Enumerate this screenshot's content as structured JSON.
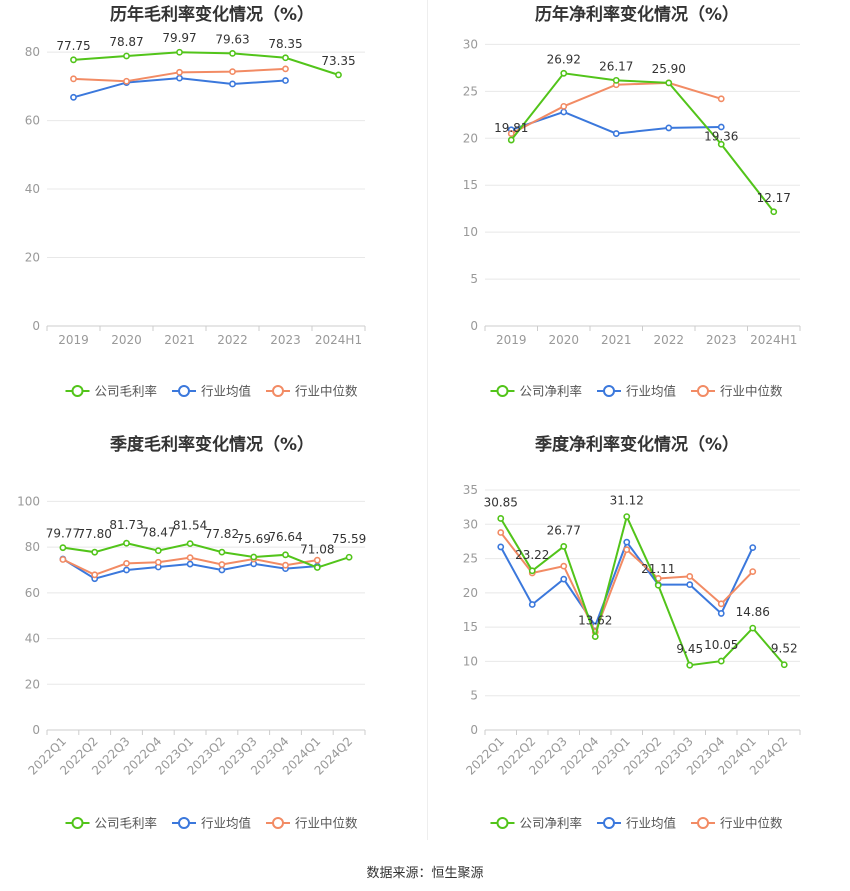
{
  "source_label": "数据来源：恒生聚源",
  "colors": {
    "company": "#52c41a",
    "avg": "#3b78dc",
    "median": "#f28b64",
    "grid": "#e8e8e8",
    "axis": "#999999",
    "label": "#333333"
  },
  "chart_data": [
    {
      "type": "line",
      "title": "历年毛利率变化情况（%）",
      "categories": [
        "2019",
        "2020",
        "2021",
        "2022",
        "2023",
        "2024H1"
      ],
      "ylim": [
        0,
        85
      ],
      "yticks": [
        0,
        20,
        40,
        60,
        80
      ],
      "legend": "bottom-center",
      "series": [
        {
          "name": "公司毛利率",
          "key": "company",
          "values": [
            77.75,
            78.87,
            79.97,
            79.63,
            78.35,
            73.35
          ],
          "labels": [
            "77.75",
            "78.87",
            "79.97",
            "79.63",
            "78.35",
            "73.35"
          ]
        },
        {
          "name": "行业均值",
          "key": "avg",
          "values": [
            66.8,
            71.1,
            72.4,
            70.7,
            71.7,
            null
          ]
        },
        {
          "name": "行业中位数",
          "key": "median",
          "values": [
            72.2,
            71.5,
            74.1,
            74.3,
            75.1,
            null
          ]
        }
      ]
    },
    {
      "type": "line",
      "title": "历年净利率变化情况（%）",
      "categories": [
        "2019",
        "2020",
        "2021",
        "2022",
        "2023",
        "2024H1"
      ],
      "ylim": [
        0,
        31
      ],
      "yticks": [
        0,
        5,
        10,
        15,
        20,
        25,
        30
      ],
      "legend": "bottom-center",
      "series": [
        {
          "name": "公司净利率",
          "key": "company",
          "values": [
            19.81,
            26.92,
            26.17,
            25.9,
            19.36,
            12.17
          ],
          "labels": [
            "19.81",
            "26.92",
            "26.17",
            "25.90",
            "19.36",
            "12.17"
          ]
        },
        {
          "name": "行业均值",
          "key": "avg",
          "values": [
            20.9,
            22.8,
            20.5,
            21.1,
            21.2,
            null
          ]
        },
        {
          "name": "行业中位数",
          "key": "median",
          "values": [
            20.5,
            23.4,
            25.7,
            25.9,
            24.2,
            null
          ]
        }
      ]
    },
    {
      "type": "line",
      "title": "季度毛利率变化情况（%）",
      "categories": [
        "2022Q1",
        "2022Q2",
        "2022Q3",
        "2022Q4",
        "2023Q1",
        "2023Q2",
        "2023Q3",
        "2023Q4",
        "2024Q1",
        "2024Q2"
      ],
      "ylim": [
        0,
        105
      ],
      "yticks": [
        0,
        20,
        40,
        60,
        80,
        100
      ],
      "legend": "bottom-center",
      "series": [
        {
          "name": "公司毛利率",
          "key": "company",
          "values": [
            79.77,
            77.8,
            81.73,
            78.47,
            81.54,
            77.82,
            75.69,
            76.64,
            71.08,
            75.59
          ],
          "labels": [
            "79.77",
            "77.80",
            "81.73",
            "78.47",
            "81.54",
            "77.82",
            "75.69",
            "76.64",
            "71.08",
            "75.59"
          ]
        },
        {
          "name": "行业均值",
          "key": "avg",
          "values": [
            74.8,
            66.2,
            70.0,
            71.3,
            72.6,
            70.0,
            72.7,
            70.6,
            71.7,
            null
          ]
        },
        {
          "name": "行业中位数",
          "key": "median",
          "values": [
            74.6,
            67.9,
            72.9,
            73.4,
            75.4,
            72.4,
            74.8,
            72.1,
            74.3,
            null
          ]
        }
      ]
    },
    {
      "type": "line",
      "title": "季度净利率变化情况（%）",
      "categories": [
        "2022Q1",
        "2022Q2",
        "2022Q3",
        "2022Q4",
        "2023Q1",
        "2023Q2",
        "2023Q3",
        "2023Q4",
        "2024Q1",
        "2024Q2"
      ],
      "ylim": [
        0,
        35
      ],
      "yticks": [
        0,
        5,
        10,
        15,
        20,
        25,
        30,
        35
      ],
      "legend": "bottom-center",
      "series": [
        {
          "name": "公司净利率",
          "key": "company",
          "values": [
            30.85,
            23.22,
            26.77,
            13.62,
            31.12,
            21.11,
            9.45,
            10.05,
            14.86,
            9.52
          ],
          "labels": [
            "30.85",
            "23.22",
            "26.77",
            "13.62",
            "31.12",
            "21.11",
            "9.45",
            "10.05",
            "14.86",
            "9.52"
          ]
        },
        {
          "name": "行业均值",
          "key": "avg",
          "values": [
            26.7,
            18.3,
            22.0,
            15.2,
            27.4,
            21.2,
            21.2,
            17.0,
            26.6,
            null
          ]
        },
        {
          "name": "行业中位数",
          "key": "median",
          "values": [
            28.8,
            22.9,
            23.9,
            14.3,
            26.3,
            22.1,
            22.4,
            18.4,
            23.1,
            null
          ]
        }
      ]
    }
  ]
}
